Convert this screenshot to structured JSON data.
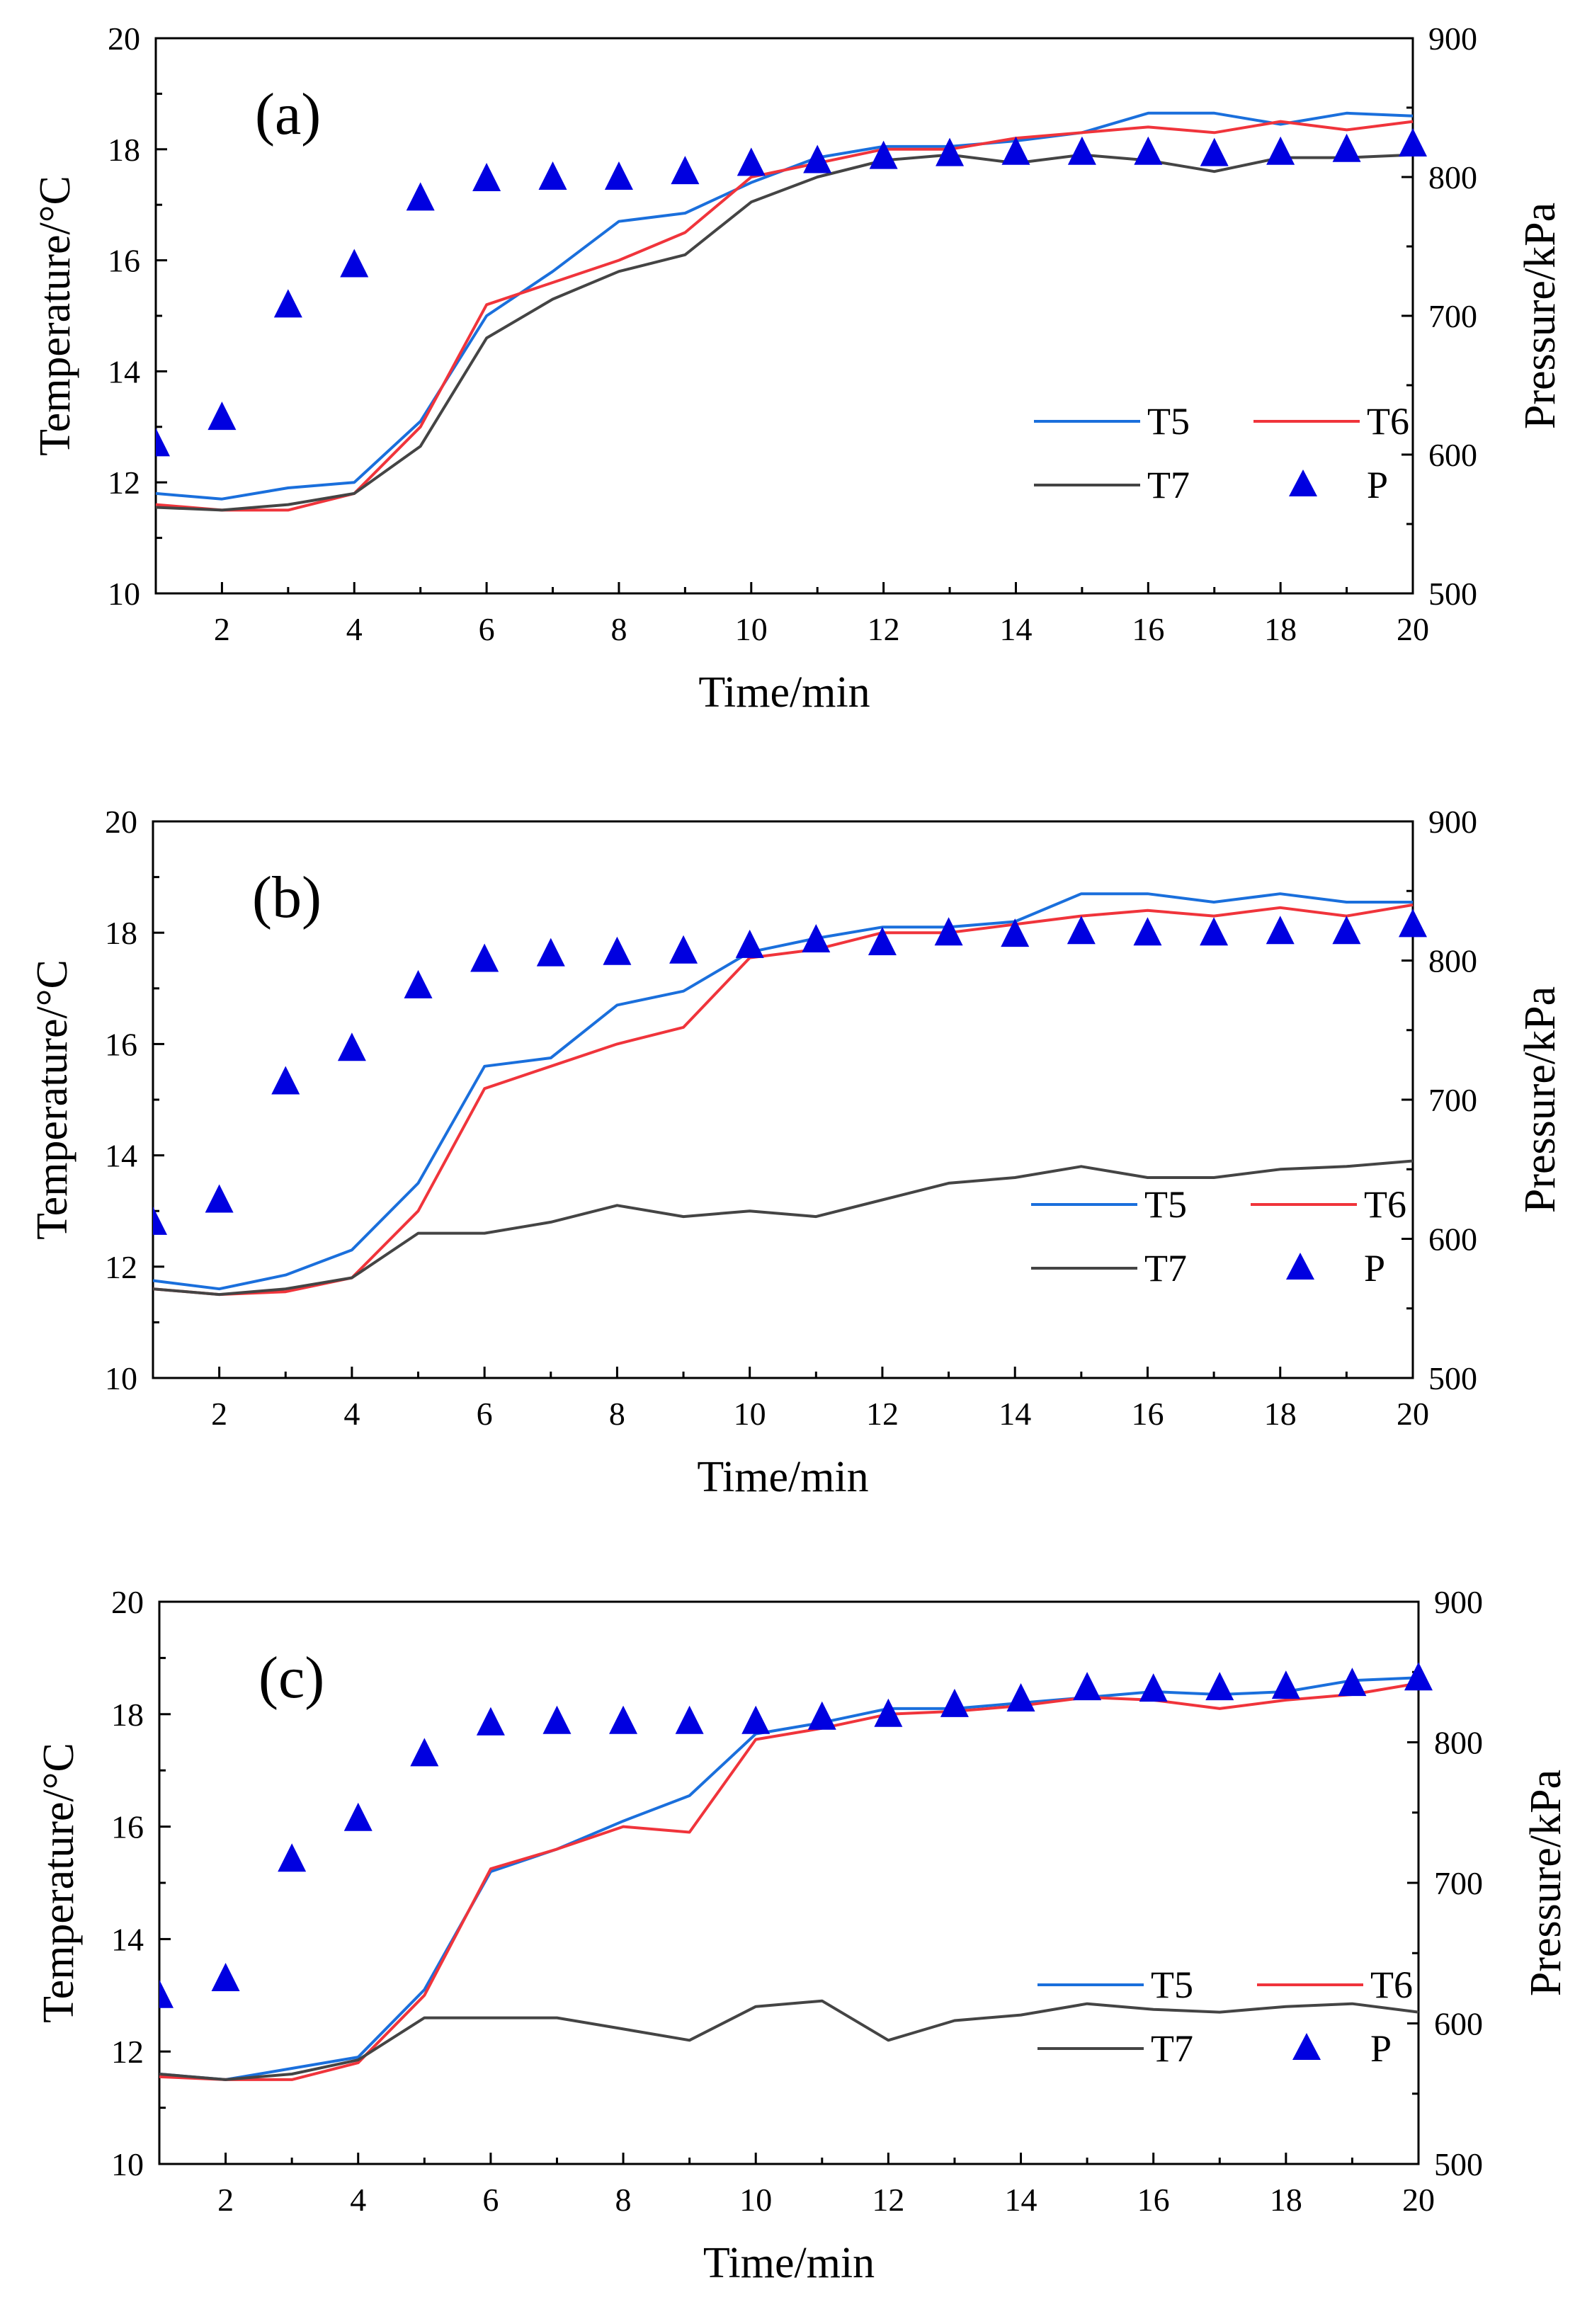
{
  "colors": {
    "T5": "#1a6fdc",
    "T6": "#f0343b",
    "T7": "#444444",
    "P": "#0000e0"
  },
  "chart_data": [
    {
      "type": "line",
      "panel_label": "(a)",
      "xlabel": "Time/min",
      "ylabel": "Temperature/°C",
      "y2label": "Pressure/kPa",
      "xlim": [
        1,
        20
      ],
      "ylim": [
        10,
        20
      ],
      "y2lim": [
        500,
        900
      ],
      "xticks": [
        "2",
        "4",
        "6",
        "8",
        "10",
        "12",
        "14",
        "16",
        "18",
        "20"
      ],
      "yticks": [
        "10",
        "12",
        "14",
        "16",
        "18",
        "20"
      ],
      "y2ticks": [
        "500",
        "600",
        "700",
        "800",
        "900"
      ],
      "x": [
        1,
        2,
        3,
        4,
        5,
        6,
        7,
        8,
        9,
        10,
        11,
        12,
        13,
        14,
        15,
        16,
        17,
        18,
        19,
        20
      ],
      "series": [
        {
          "name": "T5",
          "axis": "left",
          "values": [
            11.8,
            11.7,
            11.9,
            12.0,
            13.1,
            15.0,
            15.8,
            16.7,
            16.85,
            17.4,
            17.85,
            18.05,
            18.05,
            18.15,
            18.3,
            18.65,
            18.65,
            18.45,
            18.65,
            18.6
          ]
        },
        {
          "name": "T6",
          "axis": "left",
          "values": [
            11.6,
            11.5,
            11.5,
            11.8,
            13.0,
            15.2,
            15.6,
            16.0,
            16.5,
            17.5,
            17.75,
            18.0,
            18.0,
            18.2,
            18.3,
            18.4,
            18.3,
            18.5,
            18.35,
            18.5
          ]
        },
        {
          "name": "T7",
          "axis": "left",
          "values": [
            11.55,
            11.5,
            11.6,
            11.8,
            12.65,
            14.6,
            15.3,
            15.8,
            16.1,
            17.05,
            17.5,
            17.8,
            17.9,
            17.75,
            17.9,
            17.8,
            17.6,
            17.85,
            17.85,
            17.9
          ]
        },
        {
          "name": "P",
          "axis": "right",
          "marker": "triangle",
          "values": [
            608,
            627,
            708,
            737,
            785,
            799,
            800,
            800,
            804,
            810,
            812,
            815,
            817,
            818,
            818,
            818,
            817,
            818,
            820,
            824
          ]
        }
      ],
      "legend": [
        "T5",
        "T6",
        "T7",
        "P"
      ],
      "legend_position": "lower-right"
    },
    {
      "type": "line",
      "panel_label": "(b)",
      "xlabel": "Time/min",
      "ylabel": "Temperature/°C",
      "y2label": "Pressure/kPa",
      "xlim": [
        1,
        20
      ],
      "ylim": [
        10,
        20
      ],
      "y2lim": [
        500,
        900
      ],
      "xticks": [
        "2",
        "4",
        "6",
        "8",
        "10",
        "12",
        "14",
        "16",
        "18",
        "20"
      ],
      "yticks": [
        "10",
        "12",
        "14",
        "16",
        "18",
        "20"
      ],
      "y2ticks": [
        "500",
        "600",
        "700",
        "800",
        "900"
      ],
      "x": [
        1,
        2,
        3,
        4,
        5,
        6,
        7,
        8,
        9,
        10,
        11,
        12,
        13,
        14,
        15,
        16,
        17,
        18,
        19,
        20
      ],
      "series": [
        {
          "name": "T5",
          "axis": "left",
          "values": [
            11.75,
            11.6,
            11.85,
            12.3,
            13.5,
            15.6,
            15.75,
            16.7,
            16.95,
            17.65,
            17.9,
            18.1,
            18.1,
            18.2,
            18.7,
            18.7,
            18.55,
            18.7,
            18.55,
            18.55
          ]
        },
        {
          "name": "T6",
          "axis": "left",
          "values": [
            11.6,
            11.5,
            11.55,
            11.8,
            13.0,
            15.2,
            15.6,
            16.0,
            16.3,
            17.55,
            17.7,
            18.0,
            18.0,
            18.15,
            18.3,
            18.4,
            18.3,
            18.45,
            18.3,
            18.5
          ]
        },
        {
          "name": "T7",
          "axis": "left",
          "values": [
            11.6,
            11.5,
            11.6,
            11.8,
            12.6,
            12.6,
            12.8,
            13.1,
            12.9,
            13.0,
            12.9,
            13.2,
            13.5,
            13.6,
            13.8,
            13.6,
            13.6,
            13.75,
            13.8,
            13.9
          ]
        },
        {
          "name": "P",
          "axis": "right",
          "marker": "triangle",
          "values": [
            612,
            628,
            713,
            737,
            782,
            801,
            805,
            806,
            807,
            811,
            815,
            813,
            820,
            819,
            821,
            820,
            820,
            821,
            821,
            826
          ]
        }
      ],
      "legend": [
        "T5",
        "T6",
        "T7",
        "P"
      ],
      "legend_position": "lower-right"
    },
    {
      "type": "line",
      "panel_label": "(c)",
      "xlabel": "Time/min",
      "ylabel": "Temperature/°C",
      "y2label": "Pressure/kPa",
      "xlim": [
        1,
        20
      ],
      "ylim": [
        10,
        20
      ],
      "y2lim": [
        500,
        900
      ],
      "xticks": [
        "2",
        "4",
        "6",
        "8",
        "10",
        "12",
        "14",
        "16",
        "18",
        "20"
      ],
      "yticks": [
        "10",
        "12",
        "14",
        "16",
        "18",
        "20"
      ],
      "y2ticks": [
        "500",
        "600",
        "700",
        "800",
        "900"
      ],
      "x": [
        1,
        2,
        3,
        4,
        5,
        6,
        7,
        8,
        9,
        10,
        11,
        12,
        13,
        14,
        15,
        16,
        17,
        18,
        19,
        20
      ],
      "series": [
        {
          "name": "T5",
          "axis": "left",
          "values": [
            11.6,
            11.5,
            11.7,
            11.9,
            13.1,
            15.2,
            15.6,
            16.1,
            16.55,
            17.65,
            17.85,
            18.1,
            18.1,
            18.2,
            18.3,
            18.4,
            18.35,
            18.4,
            18.6,
            18.65
          ]
        },
        {
          "name": "T6",
          "axis": "left",
          "values": [
            11.55,
            11.5,
            11.5,
            11.8,
            13.0,
            15.25,
            15.6,
            16.0,
            15.9,
            17.55,
            17.75,
            18.0,
            18.05,
            18.15,
            18.3,
            18.25,
            18.1,
            18.25,
            18.35,
            18.55
          ]
        },
        {
          "name": "T7",
          "axis": "left",
          "values": [
            11.6,
            11.5,
            11.6,
            11.85,
            12.6,
            12.6,
            12.6,
            12.4,
            12.2,
            12.8,
            12.9,
            12.2,
            12.55,
            12.65,
            12.85,
            12.75,
            12.7,
            12.8,
            12.85,
            12.7
          ]
        },
        {
          "name": "P",
          "axis": "right",
          "marker": "triangle",
          "values": [
            620,
            632,
            717,
            746,
            792,
            814,
            815,
            815,
            815,
            815,
            818,
            820,
            827,
            831,
            839,
            838,
            839,
            840,
            842,
            846
          ]
        }
      ],
      "legend": [
        "T5",
        "T6",
        "T7",
        "P"
      ],
      "legend_position": "lower-right"
    }
  ]
}
